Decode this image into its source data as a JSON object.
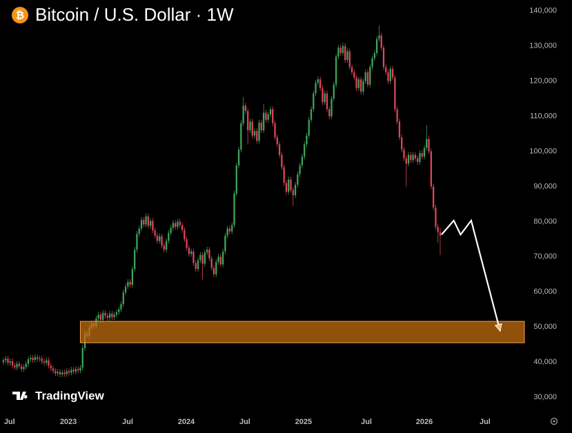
{
  "chart_data": {
    "type": "candlestick",
    "title": "Bitcoin / U.S. Dollar · 1W",
    "icon": "₿",
    "watermark": "TradingView",
    "up_color": "#3fa45b",
    "down_color": "#e0455a",
    "xlim": [
      -1.5,
      230.2
    ],
    "ylim": [
      25300,
      143100
    ],
    "xticks": [
      {
        "value": 2.7,
        "label": "Jul"
      },
      {
        "value": 28.7,
        "label": "2023"
      },
      {
        "value": 54.9,
        "label": "Jul"
      },
      {
        "value": 80.8,
        "label": "2024"
      },
      {
        "value": 106.7,
        "label": "Jul"
      },
      {
        "value": 132.6,
        "label": "2025"
      },
      {
        "value": 160.4,
        "label": "Jul"
      },
      {
        "value": 186.0,
        "label": "2026"
      },
      {
        "value": 212.8,
        "label": "Jul"
      }
    ],
    "yticks": [
      {
        "value": 30000,
        "label": "30,000"
      },
      {
        "value": 40000,
        "label": "40,000"
      },
      {
        "value": 50000,
        "label": "50,000"
      },
      {
        "value": 60000,
        "label": "60,000"
      },
      {
        "value": 70000,
        "label": "70,000"
      },
      {
        "value": 80000,
        "label": "80,000"
      },
      {
        "value": 90000,
        "label": "90,000"
      },
      {
        "value": 100000,
        "label": "100,000"
      },
      {
        "value": 110000,
        "label": "110,000"
      },
      {
        "value": 120000,
        "label": "120,000"
      },
      {
        "value": 130000,
        "label": "130,000"
      },
      {
        "value": 140000,
        "label": "140,000"
      }
    ],
    "zone": {
      "color": "#c8700f",
      "x": [
        34,
        230.2
      ],
      "y": [
        45500,
        51600
      ]
    },
    "projection": {
      "color": "#ffffff",
      "x": [
        193.6,
        199,
        202,
        206.7,
        219.5
      ],
      "values": [
        76300,
        80300,
        76300,
        80300,
        48800
      ]
    },
    "ohlc": [
      [
        40000,
        41300,
        39200,
        40500
      ],
      [
        40500,
        41800,
        39700,
        41000
      ],
      [
        41000,
        41800,
        39000,
        39800
      ],
      [
        39800,
        41000,
        39000,
        40200
      ],
      [
        40200,
        41000,
        38200,
        39000
      ],
      [
        39000,
        39800,
        37700,
        38500
      ],
      [
        38500,
        40300,
        37700,
        39500
      ],
      [
        39500,
        40300,
        38000,
        38800
      ],
      [
        38800,
        39600,
        37200,
        38000
      ],
      [
        38000,
        39400,
        37200,
        38600
      ],
      [
        38600,
        40300,
        37800,
        39500
      ],
      [
        39500,
        41600,
        38700,
        40800
      ],
      [
        40800,
        42000,
        40000,
        41200
      ],
      [
        41200,
        42000,
        39800,
        40600
      ],
      [
        40600,
        42200,
        39800,
        41400
      ],
      [
        41400,
        42200,
        40100,
        40900
      ],
      [
        40900,
        41800,
        40100,
        41000
      ],
      [
        41000,
        41800,
        39400,
        40200
      ],
      [
        40200,
        41000,
        39000,
        39800
      ],
      [
        39800,
        41300,
        39000,
        40500
      ],
      [
        40500,
        41300,
        38200,
        39000
      ],
      [
        39000,
        39800,
        37400,
        38200
      ],
      [
        38200,
        39000,
        36700,
        37500
      ],
      [
        37500,
        38300,
        36000,
        36800
      ],
      [
        36800,
        38000,
        36000,
        37200
      ],
      [
        37200,
        38000,
        35700,
        36500
      ],
      [
        36500,
        37800,
        35700,
        37000
      ],
      [
        37000,
        37800,
        35800,
        36600
      ],
      [
        36600,
        38200,
        35800,
        37400
      ],
      [
        37400,
        38200,
        36200,
        37000
      ],
      [
        37000,
        38600,
        36200,
        37800
      ],
      [
        37800,
        38600,
        36500,
        37300
      ],
      [
        37300,
        38800,
        36500,
        38000
      ],
      [
        38000,
        38800,
        36800,
        37600
      ],
      [
        37600,
        39200,
        36800,
        38400
      ],
      [
        38400,
        44800,
        37600,
        44000
      ],
      [
        44000,
        49000,
        43200,
        48200
      ],
      [
        48200,
        49000,
        46700,
        47500
      ],
      [
        47500,
        50600,
        46700,
        49800
      ],
      [
        49800,
        51800,
        49000,
        51000
      ],
      [
        51000,
        51800,
        49400,
        50200
      ],
      [
        50200,
        53200,
        49400,
        52400
      ],
      [
        52400,
        54300,
        51600,
        53500
      ],
      [
        53500,
        54300,
        51200,
        52000
      ],
      [
        52000,
        54800,
        51200,
        54000
      ],
      [
        54000,
        54800,
        52400,
        53200
      ],
      [
        53200,
        54000,
        51800,
        52600
      ],
      [
        52600,
        54600,
        51800,
        53800
      ],
      [
        53800,
        54600,
        52000,
        52800
      ],
      [
        52800,
        54300,
        52000,
        53500
      ],
      [
        53500,
        55000,
        52700,
        54200
      ],
      [
        54200,
        55800,
        53400,
        55000
      ],
      [
        55000,
        57300,
        54200,
        56500
      ],
      [
        56500,
        60600,
        55700,
        59800
      ],
      [
        59800,
        62300,
        59000,
        61500
      ],
      [
        61500,
        63600,
        60700,
        62800
      ],
      [
        62800,
        63600,
        61200,
        62000
      ],
      [
        62000,
        67300,
        61200,
        66500
      ],
      [
        66500,
        72800,
        65700,
        72000
      ],
      [
        72000,
        77300,
        71200,
        76500
      ],
      [
        76500,
        78800,
        75700,
        78000
      ],
      [
        78000,
        81300,
        77200,
        80500
      ],
      [
        80500,
        81300,
        78400,
        79200
      ],
      [
        79200,
        82300,
        78400,
        81500
      ],
      [
        81500,
        82300,
        78000,
        78800
      ],
      [
        78800,
        81000,
        78000,
        80200
      ],
      [
        80200,
        81000,
        76700,
        77500
      ],
      [
        77500,
        78300,
        75200,
        76000
      ],
      [
        76000,
        76800,
        73700,
        74500
      ],
      [
        74500,
        76600,
        73700,
        75800
      ],
      [
        75800,
        76600,
        72400,
        73200
      ],
      [
        73200,
        74000,
        71200,
        72000
      ],
      [
        72000,
        75300,
        71200,
        74500
      ],
      [
        74500,
        77600,
        73700,
        76800
      ],
      [
        76800,
        79000,
        76000,
        78200
      ],
      [
        78200,
        80400,
        77400,
        79600
      ],
      [
        79600,
        80400,
        77700,
        78500
      ],
      [
        78500,
        80800,
        77700,
        80000
      ],
      [
        80000,
        80800,
        78200,
        79000
      ],
      [
        79000,
        79800,
        76800,
        77600
      ],
      [
        77600,
        78400,
        74200,
        75000
      ],
      [
        75000,
        75800,
        71700,
        72500
      ],
      [
        72500,
        73300,
        70000,
        70800
      ],
      [
        70800,
        72300,
        70000,
        71500
      ],
      [
        71500,
        72300,
        67400,
        68200
      ],
      [
        68200,
        69000,
        65700,
        66500
      ],
      [
        66500,
        69800,
        65700,
        69000
      ],
      [
        69000,
        71300,
        68200,
        70500
      ],
      [
        70500,
        71300,
        63500,
        68000
      ],
      [
        68000,
        72000,
        67200,
        71200
      ],
      [
        71200,
        72800,
        70400,
        72000
      ],
      [
        72000,
        72800,
        68700,
        69500
      ],
      [
        69500,
        70300,
        66000,
        66800
      ],
      [
        66800,
        67600,
        64200,
        65000
      ],
      [
        65000,
        69300,
        64200,
        68500
      ],
      [
        68500,
        70800,
        67700,
        70000
      ],
      [
        70000,
        70800,
        67000,
        67800
      ],
      [
        67800,
        72300,
        67000,
        71500
      ],
      [
        71500,
        76800,
        70700,
        76000
      ],
      [
        76000,
        78800,
        75200,
        78000
      ],
      [
        78000,
        78800,
        76400,
        77200
      ],
      [
        77200,
        79800,
        76400,
        79000
      ],
      [
        79000,
        88800,
        78200,
        88000
      ],
      [
        88000,
        96800,
        87200,
        96000
      ],
      [
        96000,
        101300,
        95200,
        100500
      ],
      [
        100500,
        108800,
        99700,
        108000
      ],
      [
        108000,
        115500,
        107200,
        113000
      ],
      [
        113000,
        113800,
        110700,
        111500
      ],
      [
        111500,
        112300,
        102000,
        106000
      ],
      [
        106000,
        109300,
        105200,
        108500
      ],
      [
        108500,
        109300,
        103700,
        104500
      ],
      [
        104500,
        106600,
        103700,
        105800
      ],
      [
        105800,
        106600,
        102200,
        103000
      ],
      [
        103000,
        109000,
        102200,
        108200
      ],
      [
        108200,
        109000,
        105200,
        106000
      ],
      [
        106000,
        113500,
        105200,
        111000
      ],
      [
        111000,
        111800,
        108200,
        109000
      ],
      [
        109000,
        111300,
        108200,
        110500
      ],
      [
        110500,
        112800,
        109700,
        112000
      ],
      [
        112000,
        112800,
        107200,
        108000
      ],
      [
        108000,
        108800,
        103200,
        104000
      ],
      [
        104000,
        104800,
        101200,
        102000
      ],
      [
        102000,
        102800,
        98200,
        99000
      ],
      [
        99000,
        99800,
        94700,
        95500
      ],
      [
        95500,
        96300,
        90200,
        91000
      ],
      [
        91000,
        91800,
        87700,
        88500
      ],
      [
        88500,
        92800,
        87700,
        92000
      ],
      [
        92000,
        92800,
        88200,
        89000
      ],
      [
        89000,
        89800,
        84500,
        87500
      ],
      [
        87500,
        91300,
        86700,
        90500
      ],
      [
        90500,
        94300,
        89700,
        93500
      ],
      [
        93500,
        96800,
        92700,
        96000
      ],
      [
        96000,
        99300,
        95200,
        98500
      ],
      [
        98500,
        102800,
        97700,
        102000
      ],
      [
        102000,
        105300,
        101200,
        104500
      ],
      [
        104500,
        109800,
        103700,
        109000
      ],
      [
        109000,
        112800,
        108200,
        112000
      ],
      [
        112000,
        117300,
        111200,
        116500
      ],
      [
        116500,
        120300,
        115700,
        119500
      ],
      [
        119500,
        121300,
        118700,
        120500
      ],
      [
        120500,
        121300,
        117200,
        118000
      ],
      [
        118000,
        118800,
        113200,
        114000
      ],
      [
        114000,
        117300,
        113200,
        116500
      ],
      [
        116500,
        117300,
        111200,
        112000
      ],
      [
        112000,
        112800,
        109200,
        110000
      ],
      [
        110000,
        115800,
        109200,
        115000
      ],
      [
        115000,
        119800,
        114200,
        119000
      ],
      [
        119000,
        127800,
        118200,
        127000
      ],
      [
        127000,
        130300,
        126200,
        129500
      ],
      [
        129500,
        130300,
        127200,
        128000
      ],
      [
        128000,
        131000,
        127200,
        130000
      ],
      [
        130000,
        130800,
        125200,
        126000
      ],
      [
        126000,
        129300,
        125200,
        128500
      ],
      [
        128500,
        129300,
        123200,
        124000
      ],
      [
        124000,
        124800,
        121700,
        122500
      ],
      [
        122500,
        123300,
        120200,
        121000
      ],
      [
        121000,
        121800,
        117200,
        118000
      ],
      [
        118000,
        121300,
        117200,
        120500
      ],
      [
        120500,
        121300,
        116200,
        117000
      ],
      [
        117000,
        120800,
        116200,
        120000
      ],
      [
        120000,
        123300,
        119200,
        122500
      ],
      [
        122500,
        123300,
        118200,
        119000
      ],
      [
        119000,
        124800,
        118200,
        124000
      ],
      [
        124000,
        127300,
        123200,
        126500
      ],
      [
        126500,
        128800,
        125700,
        128000
      ],
      [
        128000,
        132800,
        127200,
        132000
      ],
      [
        132000,
        135800,
        131200,
        133000
      ],
      [
        133000,
        133800,
        128700,
        129500
      ],
      [
        129500,
        130300,
        123200,
        124000
      ],
      [
        124000,
        124800,
        121700,
        122500
      ],
      [
        122500,
        123300,
        119200,
        120000
      ],
      [
        120000,
        124300,
        119200,
        123500
      ],
      [
        123500,
        124300,
        120200,
        121000
      ],
      [
        121000,
        121800,
        111200,
        112000
      ],
      [
        112000,
        112800,
        107700,
        108500
      ],
      [
        108500,
        109300,
        103200,
        104000
      ],
      [
        104000,
        104800,
        99700,
        100500
      ],
      [
        100500,
        101300,
        97200,
        98000
      ],
      [
        98000,
        98800,
        90000,
        96500
      ],
      [
        96500,
        99800,
        95700,
        99000
      ],
      [
        99000,
        99800,
        96700,
        97500
      ],
      [
        97500,
        99800,
        96700,
        99000
      ],
      [
        99000,
        99800,
        97200,
        98000
      ],
      [
        98000,
        98800,
        96200,
        97000
      ],
      [
        97000,
        100300,
        96200,
        99500
      ],
      [
        99500,
        100300,
        97700,
        98500
      ],
      [
        98500,
        101800,
        97700,
        101000
      ],
      [
        101000,
        107500,
        100200,
        103500
      ],
      [
        103500,
        104300,
        99200,
        100000
      ],
      [
        100000,
        100800,
        89200,
        90000
      ],
      [
        90000,
        90800,
        83200,
        84000
      ],
      [
        84000,
        84800,
        77700,
        78500
      ],
      [
        78500,
        79300,
        74000,
        77000
      ],
      [
        77000,
        78200,
        70500,
        76000
      ]
    ]
  }
}
